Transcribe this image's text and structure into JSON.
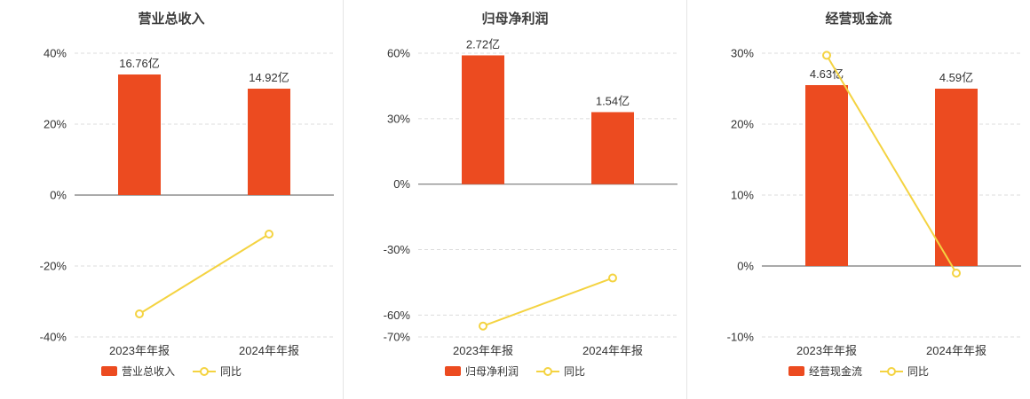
{
  "colors": {
    "bar": "#EC4B20",
    "line": "#F4D341",
    "zero_line": "#777777",
    "grid": "#DCDCDC",
    "text": "#333333",
    "divider": "#E4E4E4"
  },
  "chart_data": [
    {
      "type": "bar+line",
      "title": "营业总收入",
      "categories": [
        "2023年年报",
        "2024年年报"
      ],
      "bar_series": {
        "name": "营业总收入",
        "value_labels": [
          "16.76亿",
          "14.92亿"
        ],
        "heights_pct_axis": [
          34,
          30
        ]
      },
      "line_series": {
        "name": "同比",
        "values_pct": [
          -33.5,
          -11
        ]
      },
      "yticks_pct": [
        40,
        20,
        0,
        -20,
        -40
      ],
      "ylim": [
        -40,
        40
      ],
      "grid": "dashed",
      "legend_position": "bottom"
    },
    {
      "type": "bar+line",
      "title": "归母净利润",
      "categories": [
        "2023年年报",
        "2024年年报"
      ],
      "bar_series": {
        "name": "归母净利润",
        "value_labels": [
          "2.72亿",
          "1.54亿"
        ],
        "heights_pct_axis": [
          59,
          33
        ]
      },
      "line_series": {
        "name": "同比",
        "values_pct": [
          -65,
          -43
        ]
      },
      "yticks_pct": [
        60,
        30,
        0,
        -30,
        -60,
        -70
      ],
      "ylim": [
        -70,
        60
      ],
      "grid": "dashed",
      "legend_position": "bottom"
    },
    {
      "type": "bar+line",
      "title": "经营现金流",
      "categories": [
        "2023年年报",
        "2024年年报"
      ],
      "bar_series": {
        "name": "经营现金流",
        "value_labels": [
          "4.63亿",
          "4.59亿"
        ],
        "heights_pct_axis": [
          25.5,
          25
        ]
      },
      "line_series": {
        "name": "同比",
        "values_pct": [
          29.7,
          -1
        ]
      },
      "yticks_pct": [
        30,
        20,
        10,
        0,
        -10
      ],
      "ylim": [
        -10,
        30
      ],
      "grid": "dashed",
      "legend_position": "bottom"
    }
  ]
}
